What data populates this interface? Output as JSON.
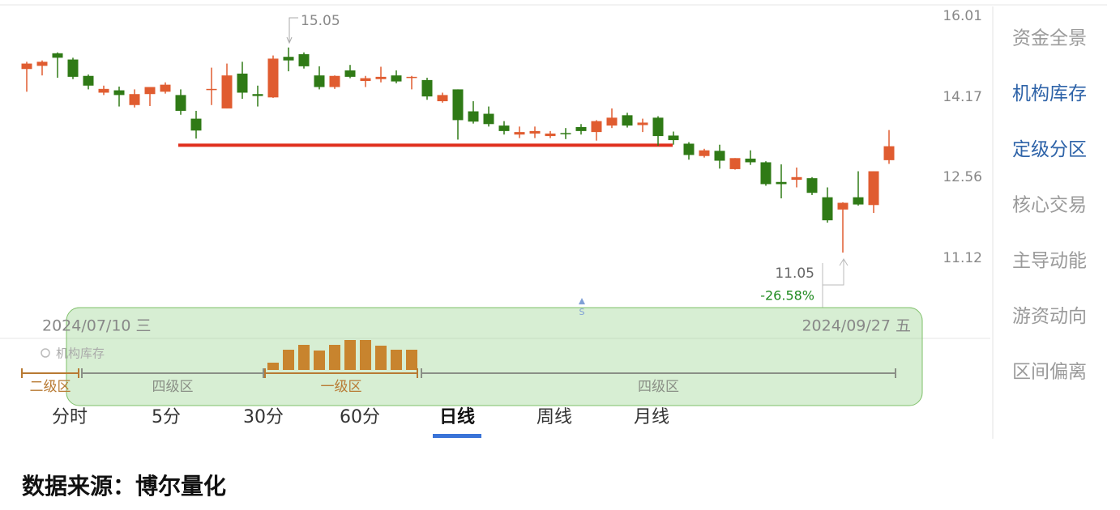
{
  "chart_data": {
    "type": "candlestick",
    "categories": [
      "2024/07/10 三",
      null,
      null,
      null,
      null,
      null,
      null,
      null,
      null,
      null,
      null,
      null,
      null,
      null,
      null,
      null,
      null,
      null,
      null,
      null,
      null,
      null,
      null,
      null,
      null,
      null,
      null,
      null,
      null,
      null,
      null,
      null,
      null,
      null,
      null,
      null,
      null,
      null,
      null,
      null,
      null,
      null,
      null,
      null,
      null,
      null,
      null,
      null,
      null,
      null,
      null,
      null,
      null,
      null,
      null,
      null,
      "2024/09/27 五"
    ],
    "open": [
      14.57,
      14.64,
      14.92,
      14.78,
      14.42,
      14.06,
      14.11,
      13.8,
      14.03,
      14.08,
      14.01,
      13.52,
      14.13,
      13.73,
      14.47,
      14.03,
      13.96,
      14.84,
      14.9,
      14.43,
      14.18,
      14.54,
      14.31,
      14.35,
      14.43,
      14.38,
      14.33,
      13.88,
      14.13,
      13.67,
      13.62,
      13.38,
      13.2,
      13.22,
      13.17,
      13.23,
      13.35,
      13.25,
      13.38,
      13.59,
      13.39,
      13.54,
      13.18,
      13.02,
      12.78,
      12.88,
      12.53,
      12.73,
      12.66,
      12.29,
      12.33,
      12.36,
      12.01,
      11.79,
      12.01,
      11.87,
      12.7
    ],
    "high": [
      14.73,
      14.76,
      14.94,
      14.82,
      14.45,
      14.21,
      14.19,
      14.13,
      14.18,
      14.28,
      14.13,
      13.68,
      14.6,
      14.69,
      14.73,
      14.21,
      14.87,
      15.05,
      14.94,
      14.63,
      14.43,
      14.66,
      14.42,
      14.62,
      14.54,
      14.42,
      14.38,
      14.06,
      14.13,
      13.88,
      13.77,
      13.47,
      13.36,
      13.36,
      13.27,
      13.33,
      13.41,
      13.49,
      13.73,
      13.64,
      13.52,
      13.57,
      13.26,
      13.05,
      12.92,
      13.0,
      12.74,
      12.89,
      12.68,
      12.62,
      12.56,
      12.38,
      12.19,
      11.92,
      12.49,
      12.49,
      13.29
    ],
    "low": [
      14.08,
      14.43,
      14.38,
      14.35,
      14.13,
      14.01,
      13.77,
      13.75,
      13.78,
      14.04,
      13.6,
      13.12,
      13.8,
      13.73,
      13.93,
      13.77,
      13.95,
      14.52,
      14.58,
      14.13,
      14.14,
      14.37,
      14.18,
      14.28,
      14.26,
      14.13,
      13.91,
      13.85,
      13.1,
      13.42,
      13.36,
      13.2,
      13.13,
      13.13,
      13.13,
      13.11,
      13.2,
      13.08,
      13.33,
      13.34,
      13.25,
      12.98,
      13.0,
      12.71,
      12.75,
      12.54,
      12.52,
      12.61,
      12.22,
      11.99,
      12.19,
      12.05,
      11.56,
      11.05,
      11.86,
      11.73,
      12.63
    ],
    "close": [
      14.69,
      14.73,
      14.82,
      14.4,
      14.21,
      14.14,
      14.01,
      14.03,
      14.18,
      14.23,
      13.68,
      13.28,
      14.14,
      14.43,
      14.06,
      13.99,
      14.8,
      14.76,
      14.63,
      14.18,
      14.42,
      14.4,
      14.37,
      14.4,
      14.3,
      14.4,
      13.98,
      14.01,
      13.49,
      13.46,
      13.41,
      13.27,
      13.25,
      13.27,
      13.22,
      13.22,
      13.27,
      13.47,
      13.54,
      13.38,
      13.44,
      13.17,
      13.09,
      12.8,
      12.89,
      12.69,
      12.74,
      12.66,
      12.25,
      12.25,
      12.38,
      12.09,
      11.6,
      11.91,
      11.88,
      12.49,
      12.97
    ],
    "up_color": "#e05c30",
    "down_color": "#2f7a16",
    "ylim": [
      10.17,
      16.01
    ],
    "ylog": true,
    "yticks": [
      16.01,
      14.17,
      12.56,
      11.12
    ],
    "grid": false,
    "support_line": {
      "value": 12.99,
      "color": "#e0301e"
    },
    "annotations": {
      "high": 15.05,
      "low": 11.05,
      "change": {
        "value": -26.58,
        "label": "-26.58%"
      }
    },
    "inventory": {
      "title": "机构库存",
      "color": "#c8842e",
      "values": [
        9,
        25,
        31,
        24,
        31,
        37,
        37,
        30,
        25,
        25
      ]
    },
    "zones": [
      {
        "label": "二级区",
        "color": "#b87a33"
      },
      {
        "label": "四级区",
        "color": "#8a8f86"
      },
      {
        "label": "一级区",
        "color": "#b87a33"
      },
      {
        "label": "四级区",
        "color": "#8a8f86"
      }
    ]
  },
  "tabs": {
    "items": [
      "分时",
      "5分",
      "30分",
      "60分",
      "日线",
      "周线",
      "月线"
    ],
    "selected": 4
  },
  "sidebar": {
    "items": [
      "资金全景",
      "机构库存",
      "定级分区",
      "核心交易",
      "主导动能",
      "游资动向",
      "区间偏离"
    ],
    "active": [
      1,
      2
    ]
  },
  "source": "数据来源：博尔量化"
}
